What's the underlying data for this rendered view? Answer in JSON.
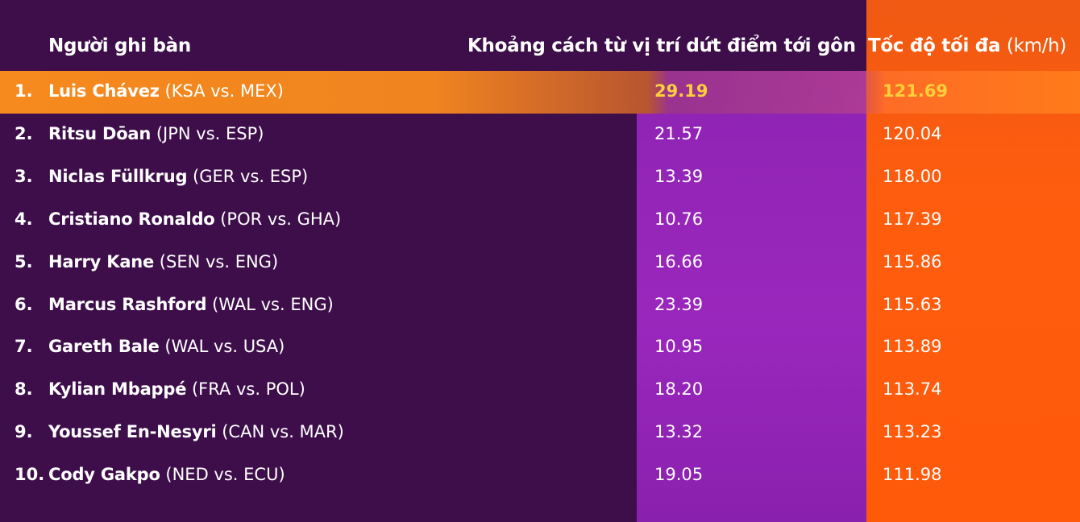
{
  "header": {
    "scorer": "Người ghi bàn",
    "distance": "Khoảng cách từ vị trí dứt điểm tới gôn",
    "speed": "Tốc độ tối đa",
    "speed_unit": "(km/h)"
  },
  "table": {
    "rows": [
      [
        "1.",
        "Luis Chávez",
        "(KSA vs. MEX)",
        "29.19",
        "121.69"
      ],
      [
        "2.",
        "Ritsu Dōan",
        "(JPN vs. ESP)",
        "21.57",
        "120.04"
      ],
      [
        "3.",
        "Niclas Füllkrug",
        "(GER vs. ESP)",
        "13.39",
        "118.00"
      ],
      [
        "4.",
        "Cristiano Ronaldo",
        "(POR vs. GHA)",
        "10.76",
        "117.39"
      ],
      [
        "5.",
        "Harry Kane",
        "(SEN vs. ENG)",
        "16.66",
        "115.86"
      ],
      [
        "6.",
        "Marcus Rashford",
        "(WAL vs. ENG)",
        "23.39",
        "115.63"
      ],
      [
        "7.",
        "Gareth Bale",
        "(WAL vs. USA)",
        "10.95",
        "113.89"
      ],
      [
        "8.",
        "Kylian Mbappé",
        "(FRA vs. POL)",
        "18.20",
        "113.74"
      ],
      [
        "9.",
        "Youssef En-Nesyri",
        "(CAN vs. MAR)",
        "13.32",
        "113.23"
      ],
      [
        "10.",
        "Cody Gakpo",
        "(NED vs. ECU)",
        "19.05",
        "111.98"
      ]
    ]
  }
}
